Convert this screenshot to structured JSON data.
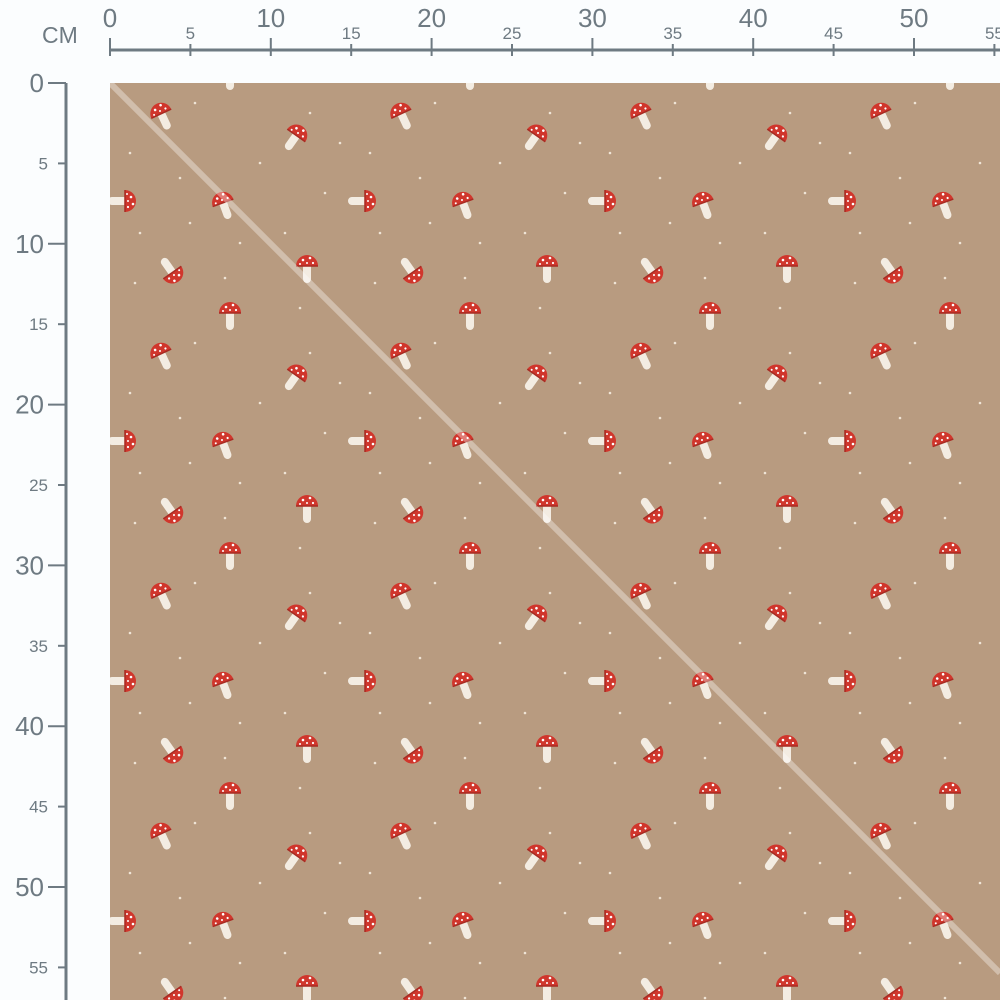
{
  "ruler": {
    "unit": "CM",
    "top_labels": [
      "0",
      "5",
      "10",
      "15",
      "20",
      "25",
      "30",
      "35",
      "40",
      "45",
      "50",
      "55"
    ],
    "left_labels": [
      "0",
      "5",
      "10",
      "15",
      "20",
      "25",
      "30",
      "35",
      "40",
      "45",
      "50",
      "55"
    ],
    "color": "#6e7a82"
  },
  "fabric": {
    "background": "#b89b80",
    "cap_color": "#d0362c",
    "stem_color": "#f3ece2",
    "motif": "fly-agaric-mushroom"
  }
}
